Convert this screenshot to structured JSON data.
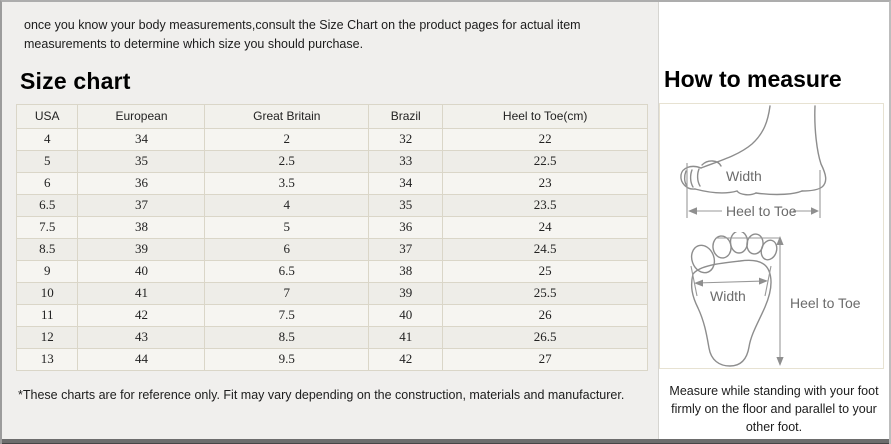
{
  "intro": "once you know your body measurements,consult the Size Chart on the product pages for actual item measurements to determine which size you should purchase.",
  "size_chart": {
    "title": "Size chart",
    "columns": [
      "USA",
      "European",
      "Great Britain",
      "Brazil",
      "Heel to Toe(cm)"
    ],
    "rows": [
      [
        "4",
        "34",
        "2",
        "32",
        "22"
      ],
      [
        "5",
        "35",
        "2.5",
        "33",
        "22.5"
      ],
      [
        "6",
        "36",
        "3.5",
        "34",
        "23"
      ],
      [
        "6.5",
        "37",
        "4",
        "35",
        "23.5"
      ],
      [
        "7.5",
        "38",
        "5",
        "36",
        "24"
      ],
      [
        "8.5",
        "39",
        "6",
        "37",
        "24.5"
      ],
      [
        "9",
        "40",
        "6.5",
        "38",
        "25"
      ],
      [
        "10",
        "41",
        "7",
        "39",
        "25.5"
      ],
      [
        "11",
        "42",
        "7.5",
        "40",
        "26"
      ],
      [
        "12",
        "43",
        "8.5",
        "41",
        "26.5"
      ],
      [
        "13",
        "44",
        "9.5",
        "42",
        "27"
      ]
    ],
    "footnote": "*These charts are for reference only. Fit may vary depending on the construction, materials and manufacturer."
  },
  "how_to_measure": {
    "title": "How to measure",
    "side_view": {
      "width_label": "Width",
      "heel_to_toe_label": "Heel to Toe"
    },
    "top_view": {
      "width_label": "Width",
      "heel_to_toe_label": "Heel to Toe"
    },
    "note": "Measure while standing with your foot firmly on the floor and parallel to your other foot."
  },
  "colors": {
    "left_panel_bg": "#f0efed",
    "table_border": "#dad6c8",
    "diagram_box_border": "#e7e2d2",
    "bottom_strip": "#6d6d6d"
  }
}
